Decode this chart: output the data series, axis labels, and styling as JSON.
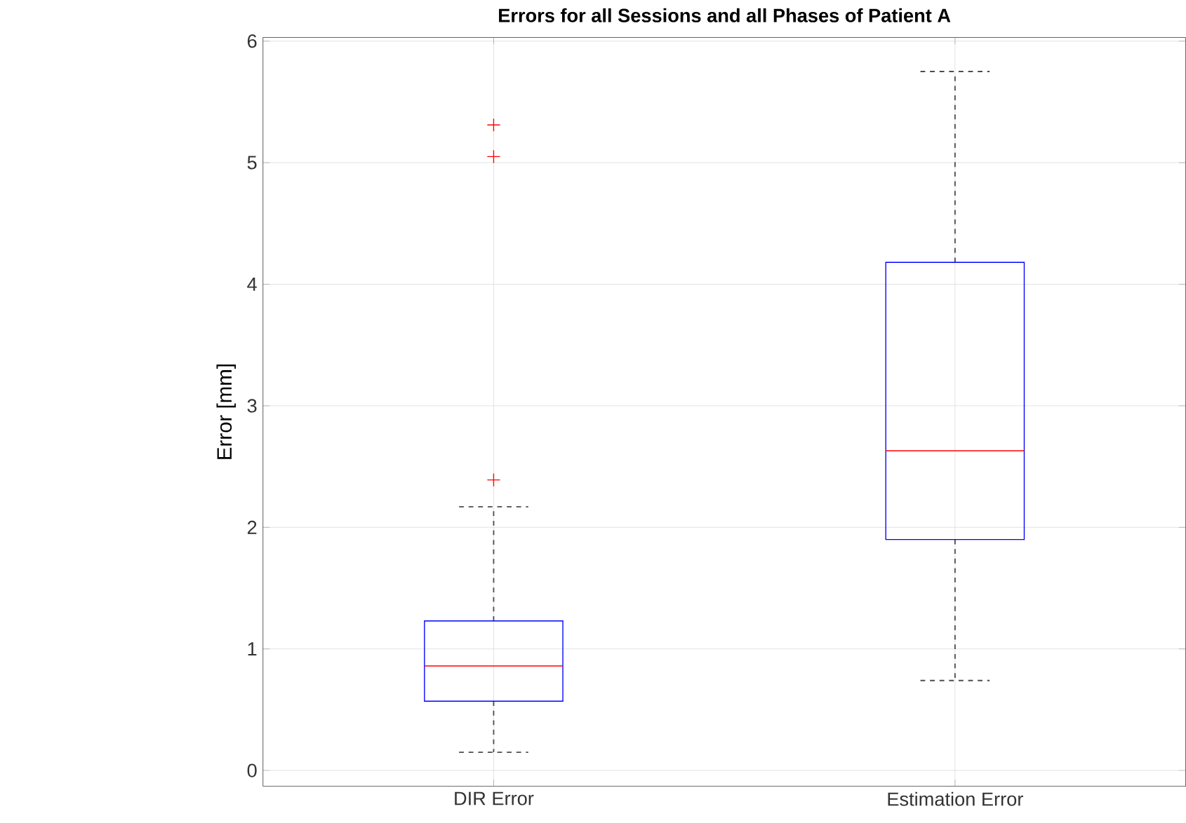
{
  "chart_data": {
    "type": "box",
    "title": "Errors for all Sessions and all Phases of Patient A",
    "ylabel": "Error [mm]",
    "categories": [
      "DIR Error",
      "Estimation Error"
    ],
    "boxes": [
      {
        "low": 0.15,
        "q1": 0.57,
        "median": 0.86,
        "q3": 1.23,
        "high": 2.17,
        "outliers": [
          2.39,
          5.05,
          5.31
        ]
      },
      {
        "low": 0.74,
        "q1": 1.9,
        "median": 2.63,
        "q3": 4.18,
        "high": 5.75
      }
    ],
    "color": "#0000ff",
    "ylim": [
      -0.13,
      6.03
    ],
    "yticks": [
      0,
      1,
      2,
      3,
      4,
      5,
      6
    ],
    "grid": true
  }
}
